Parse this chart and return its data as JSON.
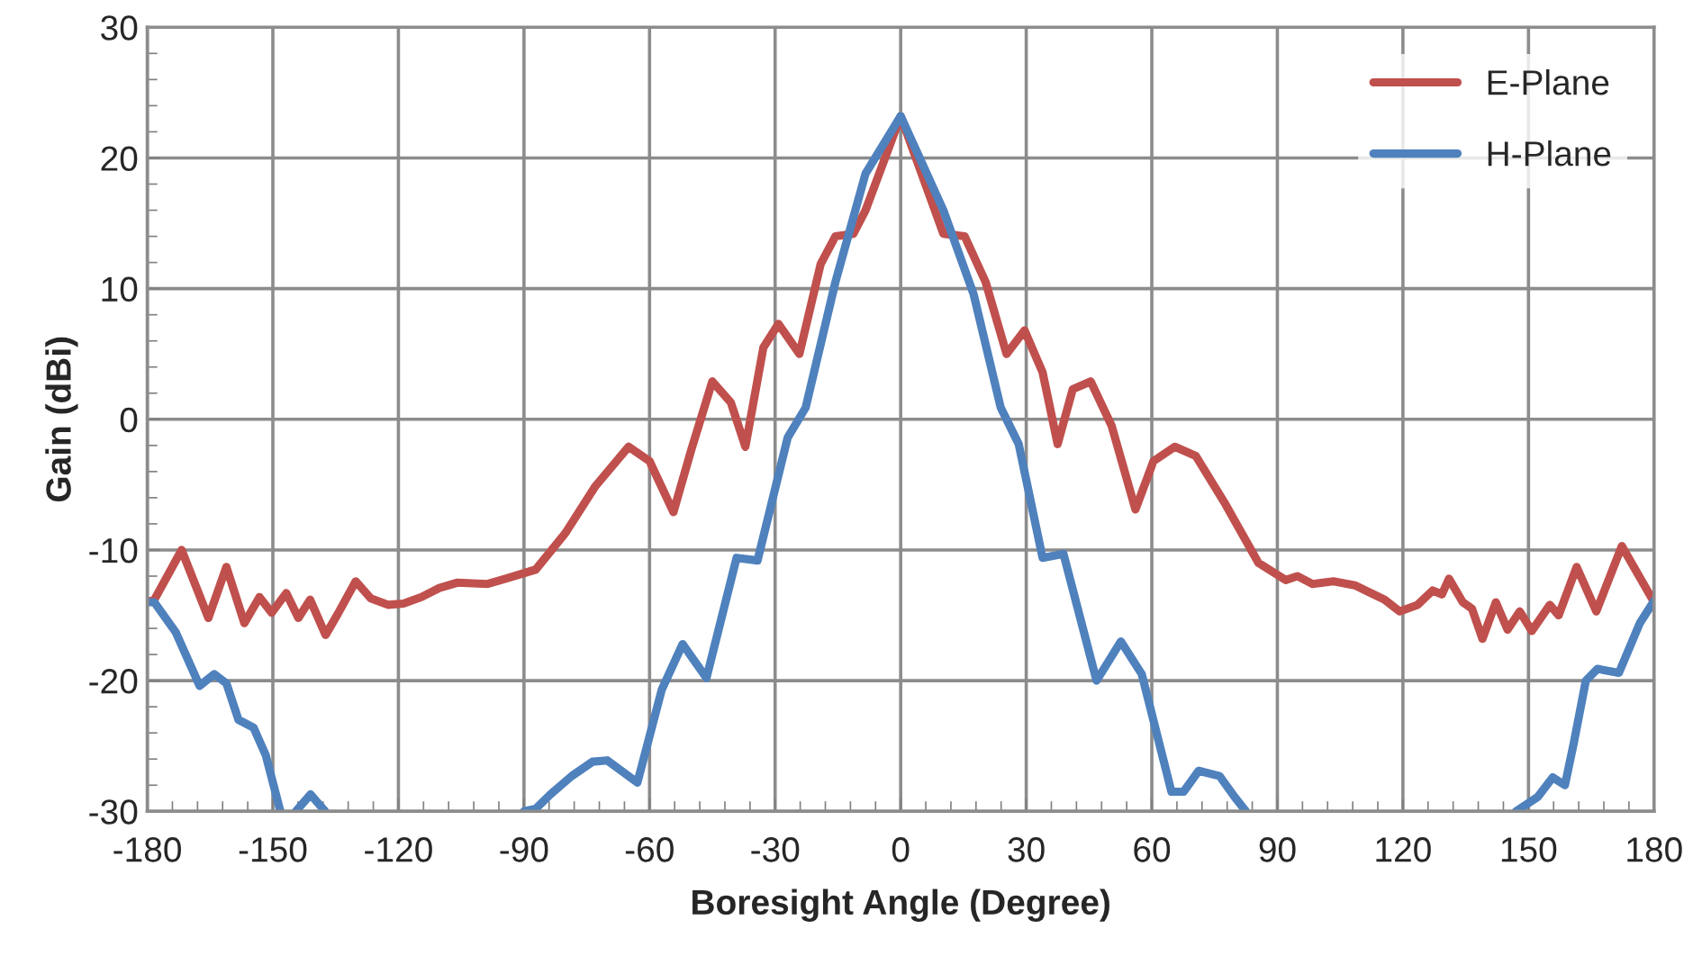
{
  "chart_data": {
    "type": "line",
    "xlabel": "Boresight Angle (Degree)",
    "ylabel": "Gain (dBi)",
    "xlim": [
      -180,
      180
    ],
    "xticks": [
      -180,
      -150,
      -120,
      -90,
      -60,
      -30,
      0,
      30,
      60,
      90,
      120,
      150,
      180
    ],
    "ylim": [
      -30,
      30
    ],
    "yticks": [
      -30,
      -20,
      -10,
      0,
      10,
      20,
      30
    ],
    "grid": true,
    "legend": "top right",
    "marker": "none",
    "line_style": "solid",
    "series": [
      {
        "name": "E-Plane",
        "color": "#c0504d",
        "x": [
          -180,
          -178.3,
          -171.8,
          -165.4,
          -161.1,
          -156.8,
          -153.2,
          -150.3,
          -146.8,
          -143.9,
          -141.1,
          -137.4,
          -134.5,
          -130.2,
          -126.6,
          -122.4,
          -118.8,
          -114.5,
          -110.2,
          -105.9,
          -98.7,
          -94.4,
          -87.2,
          -80.1,
          -72.9,
          -65,
          -60,
          -54.3,
          -50,
          -45,
          -40.6,
          -37.1,
          -32.8,
          -29.2,
          -24.2,
          -19.1,
          -15.6,
          -11.3,
          -8.4,
          0,
          10.2,
          15.3,
          20.3,
          25.3,
          29.6,
          33.9,
          37.5,
          41.1,
          45.4,
          50.4,
          56.1,
          60.4,
          65.5,
          70.5,
          77.6,
          85.5,
          92,
          94.8,
          98.4,
          103.4,
          108.5,
          115.6,
          119.2,
          123.5,
          127.1,
          129.3,
          131,
          134.3,
          136.5,
          139,
          142.2,
          145,
          147.9,
          150.8,
          155.1,
          157.2,
          161.5,
          166.2,
          172.3,
          180
        ],
        "values": [
          -14,
          -13.8,
          -10,
          -15.2,
          -11.3,
          -15.6,
          -13.6,
          -14.8,
          -13.3,
          -15.2,
          -13.8,
          -16.5,
          -14.9,
          -12.4,
          -13.7,
          -14.2,
          -14.1,
          -13.6,
          -12.9,
          -12.5,
          -12.6,
          -12.2,
          -11.5,
          -8.7,
          -5.1,
          -2.1,
          -3.2,
          -7.1,
          -2.3,
          2.9,
          1.3,
          -2.1,
          5.5,
          7.3,
          5,
          11.9,
          14,
          14.2,
          16,
          23.2,
          14.2,
          14,
          10.5,
          5,
          6.8,
          3.6,
          -1.9,
          2.3,
          2.9,
          -0.5,
          -6.9,
          -3.2,
          -2.1,
          -2.8,
          -6.5,
          -11,
          -12.3,
          -12,
          -12.6,
          -12.4,
          -12.7,
          -13.8,
          -14.7,
          -14.2,
          -13.1,
          -13.4,
          -12.2,
          -14,
          -14.5,
          -16.8,
          -14,
          -16.1,
          -14.7,
          -16.2,
          -14.2,
          -15,
          -11.3,
          -14.7,
          -9.7,
          -14
        ]
      },
      {
        "name": "H-Plane",
        "color": "#4f81bd",
        "x": [
          -180,
          -178.3,
          -173.2,
          -167.5,
          -164,
          -161.1,
          -158.2,
          -154.6,
          -151.7,
          -148.2,
          -146,
          -144.5,
          -141,
          -137.5,
          -114,
          -90,
          -87.2,
          -83.7,
          -78.6,
          -73.6,
          -70.1,
          -62.9,
          -57.1,
          -52.1,
          -46.4,
          -39.2,
          -34.2,
          -27,
          -22.7,
          -15.6,
          -8.4,
          0,
          10.2,
          17.4,
          23.9,
          28.2,
          33.9,
          38.9,
          46.8,
          52.6,
          57.6,
          64.7,
          67.6,
          71.2,
          76.2,
          79.8,
          82.5,
          110,
          147,
          152.2,
          155.8,
          158.7,
          160.8,
          163.7,
          166.5,
          171.6,
          176.6,
          180
        ],
        "values": [
          -14,
          -14,
          -16.3,
          -20.4,
          -19.5,
          -20.2,
          -23,
          -23.6,
          -25.7,
          -30,
          null,
          -30,
          -28.7,
          -30,
          null,
          -30,
          -29.8,
          -28.7,
          -27.3,
          -26.2,
          -26.1,
          -27.8,
          -20.7,
          -17.2,
          -19.8,
          -10.6,
          -10.8,
          -1.4,
          0.9,
          10.5,
          18.8,
          23.2,
          16,
          9.6,
          0.9,
          -1.9,
          -10.6,
          -10.3,
          -20,
          -17,
          -19.5,
          -28.5,
          -28.5,
          -26.9,
          -27.3,
          -28.9,
          -30,
          null,
          -30,
          -28.9,
          -27.4,
          -28,
          -24.8,
          -20,
          -19.1,
          -19.4,
          -15.6,
          -13.9
        ]
      }
    ]
  }
}
